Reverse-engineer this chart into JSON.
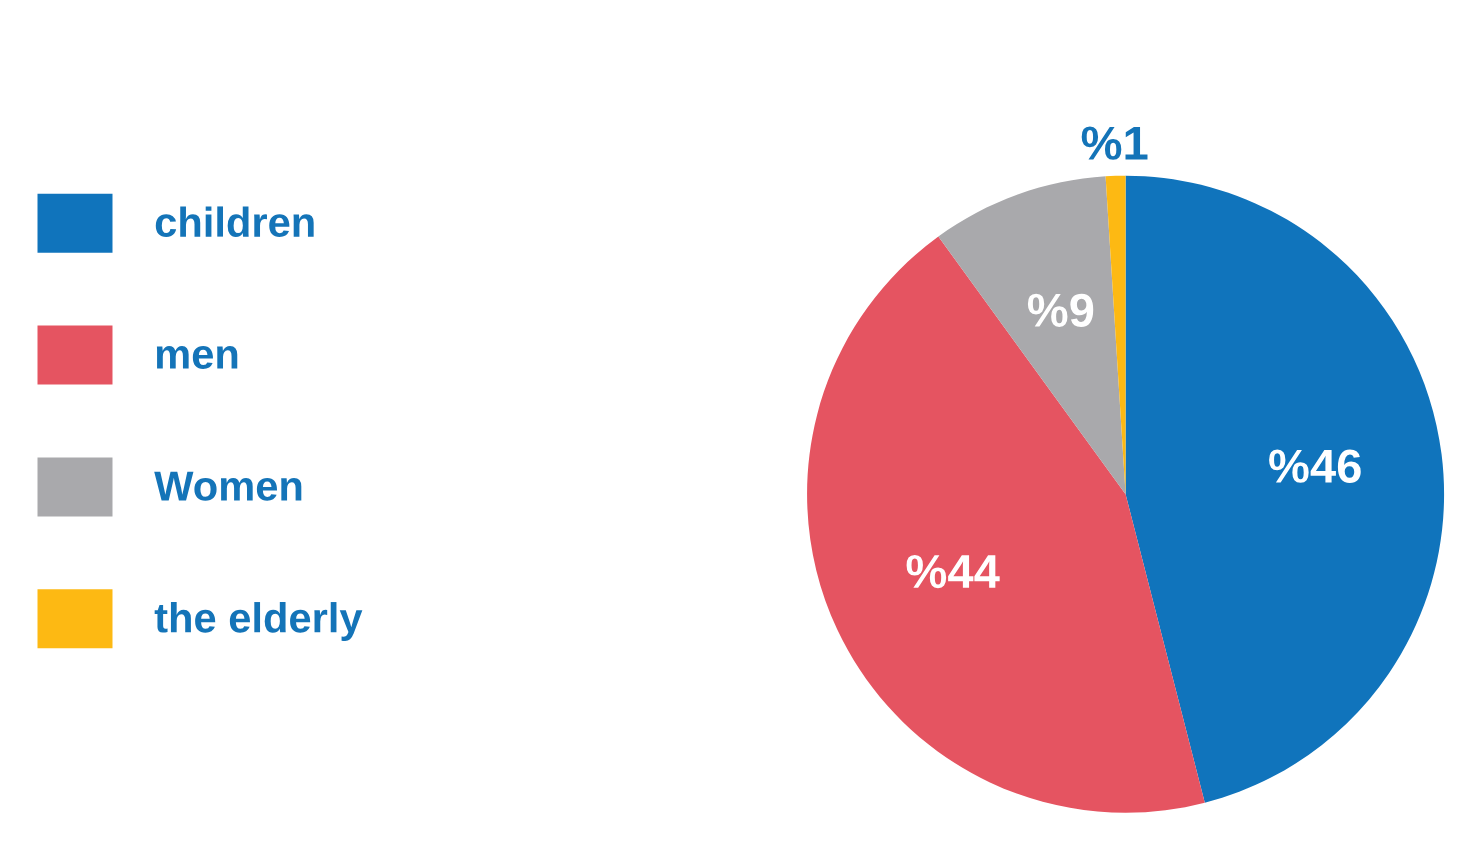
{
  "chart_data": {
    "type": "pie",
    "categories": [
      "children",
      "men",
      "Women",
      "the elderly"
    ],
    "values": [
      46,
      44,
      9,
      1
    ],
    "colors": [
      "#1074bc",
      "#e55461",
      "#a9a9ac",
      "#fdb913"
    ],
    "value_labels": [
      "%46",
      "%44",
      "%9",
      "%1"
    ],
    "legend": "left"
  }
}
